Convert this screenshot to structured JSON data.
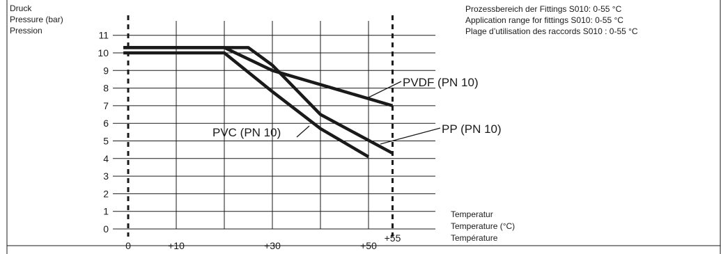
{
  "chart_data": {
    "type": "line",
    "ylabel": [
      "Druck",
      "Pressure (bar)",
      "Pression"
    ],
    "xlabel": [
      "Temperatur",
      "Temperature (°C)",
      "Température"
    ],
    "notes": [
      "Prozessbereich der Fittings S010: 0-55 °C",
      "Application range for fittings S010: 0-55 °C",
      "Plage d’utilisation des raccords S010 : 0-55 °C"
    ],
    "xlim": [
      -3,
      60
    ],
    "ylim": [
      0,
      11.5
    ],
    "y_ticks": [
      0,
      1,
      2,
      3,
      4,
      5,
      6,
      7,
      8,
      9,
      10,
      11
    ],
    "x_tick_labels": [
      {
        "x": 0,
        "label": "0"
      },
      {
        "x": 10,
        "label": "+10"
      },
      {
        "x": 30,
        "label": "+30"
      },
      {
        "x": 50,
        "label": "+50"
      },
      {
        "x": 55,
        "label": "+55"
      }
    ],
    "x_gridlines": [
      10,
      20,
      30,
      40,
      50
    ],
    "range_markers": [
      0,
      55
    ],
    "grid": true,
    "series": [
      {
        "name": "PVDF (PN 10)",
        "points": [
          [
            -1,
            10.3
          ],
          [
            20,
            10.3
          ],
          [
            30,
            9.0
          ],
          [
            55,
            7.0
          ]
        ]
      },
      {
        "name": "PP (PN 10)",
        "points": [
          [
            -1,
            10.3
          ],
          [
            25,
            10.3
          ],
          [
            30,
            9.3
          ],
          [
            40,
            6.5
          ],
          [
            55,
            4.3
          ]
        ]
      },
      {
        "name": "PVC (PN 10)",
        "points": [
          [
            -1,
            10.0
          ],
          [
            20,
            10.0
          ],
          [
            30,
            7.8
          ],
          [
            40,
            5.7
          ],
          [
            50,
            4.1
          ]
        ]
      }
    ]
  }
}
